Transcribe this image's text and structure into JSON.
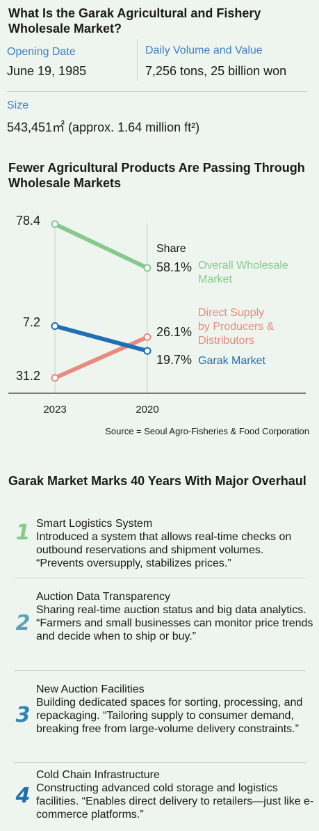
{
  "intro": {
    "title": "What Is the Garak Agricultural and Fishery Wholesale Market?",
    "facts": [
      {
        "label": "Opening Date",
        "value": "June 19, 1985"
      },
      {
        "label": "Daily Volume and Value",
        "value": "7,256 tons, 25 billion won"
      },
      {
        "label": "Size",
        "value": "543,451㎡ (approx. 1.64 million ft²)"
      }
    ]
  },
  "chart_section": {
    "title": "Fewer Agricultural Products Are Passing Through Wholesale Markets",
    "source": "Source = Seoul Agro-Fisheries & Food Corporation"
  },
  "chart_data": {
    "type": "line",
    "categories": [
      "2023",
      "2020"
    ],
    "legend_header": "Share",
    "series": [
      {
        "name": "Overall Wholesale Market",
        "values": [
          78.4,
          58.1
        ],
        "start_label": "78.4",
        "end_label": "58.1%",
        "color": "#86c98c"
      },
      {
        "name": "Direct Supply by Producers & Distributors",
        "values": [
          7.2,
          26.1
        ],
        "start_label": "7.2",
        "end_label": "26.1%",
        "color": "#e88a7d"
      },
      {
        "name": "Garak Market",
        "values": [
          31.2,
          19.7
        ],
        "start_label": "31.2",
        "end_label": "19.7%",
        "color": "#1f6fb2"
      }
    ]
  },
  "overhaul": {
    "title": "Garak Market Marks 40 Years With Major Overhaul",
    "items": [
      {
        "num": "1",
        "title": "Smart Logistics System",
        "desc": "Introduced a system that allows real-time checks on outbound reservations and shipment volumes. “Prevents oversupply, stabilizes prices.”",
        "color": "#86c98c"
      },
      {
        "num": "2",
        "title": "Auction Data Transparency",
        "desc": "Sharing real-time auction status and big data analytics. “Farmers and small businesses can monitor price trends and decide when to ship or buy.”",
        "color": "#5aa6b4"
      },
      {
        "num": "3",
        "title": "New Auction Facilities",
        "desc": "Building dedicated spaces for sorting, processing, and repackaging. “Tailoring supply to consumer demand, breaking free from large-volume delivery constraints.”",
        "color": "#2e86b8"
      },
      {
        "num": "4",
        "title": "Cold Chain Infrastructure",
        "desc": "Constructing advanced cold storage and logistics facilities. “Enables direct delivery to retailers—just like e-commerce platforms.”",
        "color": "#1f6fb2"
      }
    ]
  }
}
